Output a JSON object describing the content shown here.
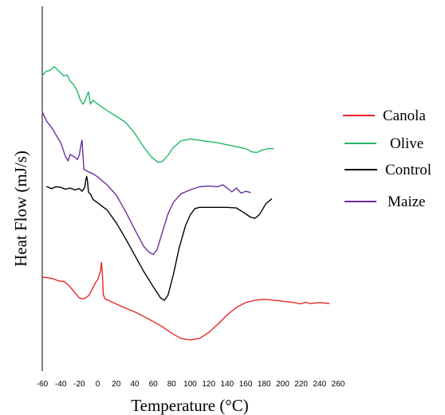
{
  "chart_data": {
    "type": "line",
    "title": "",
    "xlabel": "Temperature (°C)",
    "ylabel": "Heat Flow (mJ/s)",
    "xlim": [
      -60,
      260
    ],
    "xticks": [
      -60,
      -40,
      -20,
      0,
      20,
      40,
      60,
      80,
      100,
      120,
      140,
      160,
      180,
      200,
      220,
      240,
      260
    ],
    "yticks": [],
    "ylim": [
      0,
      100
    ],
    "grid": false,
    "legend_position": "right",
    "legend": [
      {
        "name": "Canola",
        "color": "#e8262a"
      },
      {
        "name": "Olive",
        "color": "#22b866"
      },
      {
        "name": "Control",
        "color": "#000000"
      },
      {
        "name": "Maize",
        "color": "#6a2ea0"
      }
    ],
    "series": [
      {
        "name": "Canola",
        "color": "#e8262a",
        "points": [
          [
            -60,
            24.0
          ],
          [
            -50,
            23.6
          ],
          [
            -42,
            22.8
          ],
          [
            -36,
            22.6
          ],
          [
            -30,
            21.0
          ],
          [
            -25,
            19.2
          ],
          [
            -20,
            17.5
          ],
          [
            -15,
            17.2
          ],
          [
            -10,
            18.2
          ],
          [
            -6,
            20.2
          ],
          [
            -3,
            22.0
          ],
          [
            0,
            23.2
          ],
          [
            3,
            25.8
          ],
          [
            4,
            28.6
          ],
          [
            5,
            25.0
          ],
          [
            6,
            18.6
          ],
          [
            8,
            17.2
          ],
          [
            15,
            16.3
          ],
          [
            25,
            15.0
          ],
          [
            40,
            13.2
          ],
          [
            55,
            11.0
          ],
          [
            70,
            8.6
          ],
          [
            80,
            6.6
          ],
          [
            90,
            5.0
          ],
          [
            100,
            4.5
          ],
          [
            110,
            5.0
          ],
          [
            120,
            6.8
          ],
          [
            130,
            9.4
          ],
          [
            140,
            12.3
          ],
          [
            150,
            14.6
          ],
          [
            160,
            16.1
          ],
          [
            170,
            16.8
          ],
          [
            180,
            17.1
          ],
          [
            195,
            16.7
          ],
          [
            210,
            16.2
          ],
          [
            220,
            15.7
          ],
          [
            225,
            16.2
          ],
          [
            230,
            15.8
          ],
          [
            240,
            16.1
          ],
          [
            250,
            15.8
          ]
        ]
      },
      {
        "name": "Control",
        "color": "#000000",
        "points": [
          [
            -55,
            52.0
          ],
          [
            -50,
            51.4
          ],
          [
            -45,
            52.0
          ],
          [
            -40,
            51.8
          ],
          [
            -35,
            51.2
          ],
          [
            -30,
            51.6
          ],
          [
            -25,
            51.0
          ],
          [
            -20,
            51.4
          ],
          [
            -17,
            50.6
          ],
          [
            -14,
            51.8
          ],
          [
            -13,
            54.0
          ],
          [
            -12,
            55.2
          ],
          [
            -11,
            53.5
          ],
          [
            -10,
            50.2
          ],
          [
            -8,
            49.8
          ],
          [
            -5,
            48.0
          ],
          [
            0,
            47.0
          ],
          [
            10,
            44.8
          ],
          [
            20,
            40.8
          ],
          [
            30,
            36.0
          ],
          [
            40,
            30.8
          ],
          [
            50,
            25.6
          ],
          [
            60,
            21.0
          ],
          [
            68,
            17.5
          ],
          [
            72,
            16.8
          ],
          [
            76,
            18.4
          ],
          [
            82,
            25.0
          ],
          [
            88,
            33.0
          ],
          [
            95,
            40.0
          ],
          [
            100,
            43.2
          ],
          [
            105,
            45.2
          ],
          [
            110,
            45.6
          ],
          [
            120,
            45.6
          ],
          [
            140,
            45.6
          ],
          [
            150,
            45.4
          ],
          [
            158,
            44.0
          ],
          [
            165,
            42.6
          ],
          [
            170,
            42.2
          ],
          [
            175,
            43.4
          ],
          [
            182,
            46.8
          ],
          [
            188,
            48.2
          ]
        ]
      },
      {
        "name": "Maize",
        "color": "#6a2ea0",
        "points": [
          [
            -60,
            75.2
          ],
          [
            -55,
            72.2
          ],
          [
            -50,
            70.4
          ],
          [
            -45,
            68.0
          ],
          [
            -40,
            65.6
          ],
          [
            -35,
            61.4
          ],
          [
            -32,
            60.0
          ],
          [
            -30,
            62.0
          ],
          [
            -25,
            61.2
          ],
          [
            -22,
            60.4
          ],
          [
            -20,
            61.8
          ],
          [
            -18,
            65.2
          ],
          [
            -17,
            66.4
          ],
          [
            -16,
            62.0
          ],
          [
            -15,
            57.4
          ],
          [
            -10,
            56.6
          ],
          [
            -5,
            56.0
          ],
          [
            0,
            55.0
          ],
          [
            10,
            52.6
          ],
          [
            20,
            49.4
          ],
          [
            30,
            44.4
          ],
          [
            40,
            38.8
          ],
          [
            50,
            33.4
          ],
          [
            56,
            31.6
          ],
          [
            60,
            31.0
          ],
          [
            64,
            32.4
          ],
          [
            70,
            38.0
          ],
          [
            76,
            43.6
          ],
          [
            82,
            47.2
          ],
          [
            90,
            49.8
          ],
          [
            100,
            51.0
          ],
          [
            110,
            52.0
          ],
          [
            120,
            52.2
          ],
          [
            130,
            52.0
          ],
          [
            135,
            52.6
          ],
          [
            140,
            51.6
          ],
          [
            145,
            50.4
          ],
          [
            150,
            51.6
          ],
          [
            155,
            50.0
          ],
          [
            160,
            50.6
          ],
          [
            165,
            50.2
          ]
        ]
      },
      {
        "name": "Olive",
        "color": "#22b866",
        "points": [
          [
            -60,
            86.4
          ],
          [
            -56,
            87.8
          ],
          [
            -52,
            88.0
          ],
          [
            -47,
            89.2
          ],
          [
            -42,
            87.8
          ],
          [
            -37,
            86.4
          ],
          [
            -33,
            86.6
          ],
          [
            -30,
            84.8
          ],
          [
            -26,
            83.6
          ],
          [
            -22,
            81.6
          ],
          [
            -19,
            79.0
          ],
          [
            -16,
            77.6
          ],
          [
            -14,
            78.4
          ],
          [
            -12,
            80.2
          ],
          [
            -10,
            81.4
          ],
          [
            -8,
            77.6
          ],
          [
            -5,
            78.8
          ],
          [
            0,
            77.6
          ],
          [
            10,
            75.6
          ],
          [
            20,
            73.8
          ],
          [
            30,
            72.0
          ],
          [
            40,
            68.6
          ],
          [
            50,
            64.2
          ],
          [
            58,
            61.2
          ],
          [
            65,
            59.6
          ],
          [
            70,
            59.8
          ],
          [
            76,
            61.8
          ],
          [
            82,
            64.2
          ],
          [
            90,
            66.2
          ],
          [
            100,
            66.8
          ],
          [
            110,
            66.4
          ],
          [
            120,
            66.0
          ],
          [
            130,
            65.6
          ],
          [
            140,
            65.0
          ],
          [
            150,
            64.4
          ],
          [
            160,
            63.8
          ],
          [
            167,
            62.8
          ],
          [
            172,
            62.6
          ],
          [
            178,
            63.4
          ],
          [
            185,
            63.8
          ],
          [
            190,
            63.8
          ]
        ]
      }
    ]
  }
}
